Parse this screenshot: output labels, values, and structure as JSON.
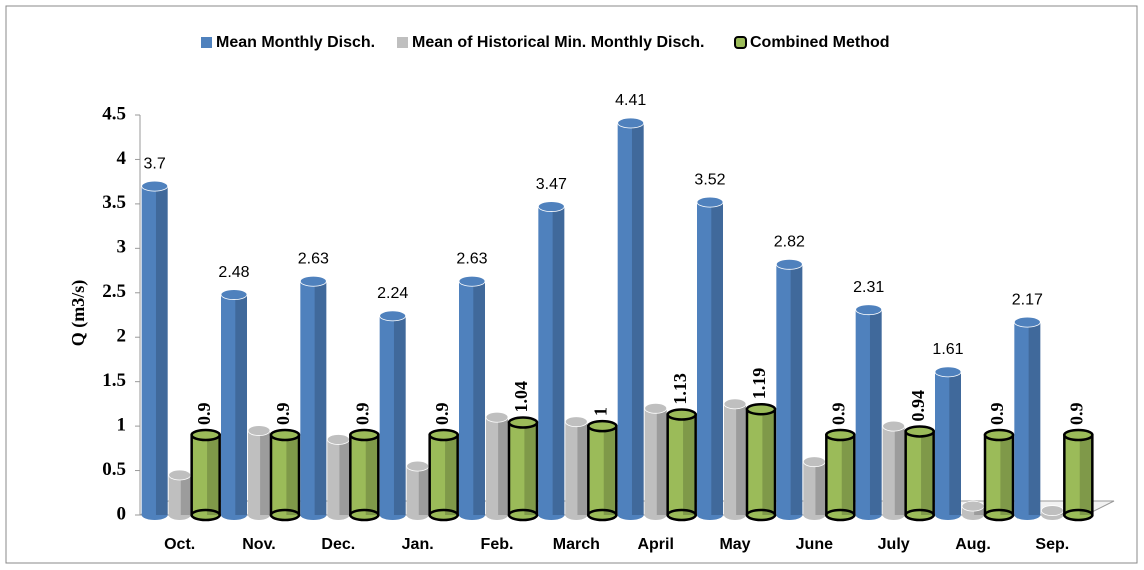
{
  "chart_data": {
    "type": "bar3d",
    "y_label": "Q (m3/s)",
    "categories": [
      "Oct.",
      "Nov.",
      "Dec.",
      "Jan.",
      "Feb.",
      "March",
      "April",
      "May",
      "June",
      "July",
      "Aug.",
      "Sep."
    ],
    "series": [
      {
        "name": "Mean Monthly Disch.",
        "color": "#4f81bd",
        "values": [
          3.7,
          2.48,
          2.63,
          2.24,
          2.63,
          3.47,
          4.41,
          3.52,
          2.82,
          2.31,
          1.61,
          2.17
        ]
      },
      {
        "name": "Mean of Historical Min. Monthly Disch.",
        "color": "#bfbfbf",
        "values": [
          0.45,
          0.95,
          0.85,
          0.55,
          1.1,
          1.05,
          1.2,
          1.25,
          0.6,
          1.0,
          0.1,
          0.05
        ]
      },
      {
        "name": "Combined Method",
        "color": "#9bbb59",
        "values": [
          0.9,
          0.9,
          0.9,
          0.9,
          1.04,
          1,
          1.13,
          1.19,
          0.9,
          0.94,
          0.9,
          0.9
        ]
      }
    ],
    "ylim": [
      0,
      4.5
    ],
    "yticks": [
      0,
      0.5,
      1,
      1.5,
      2,
      2.5,
      3,
      3.5,
      4,
      4.5
    ]
  }
}
